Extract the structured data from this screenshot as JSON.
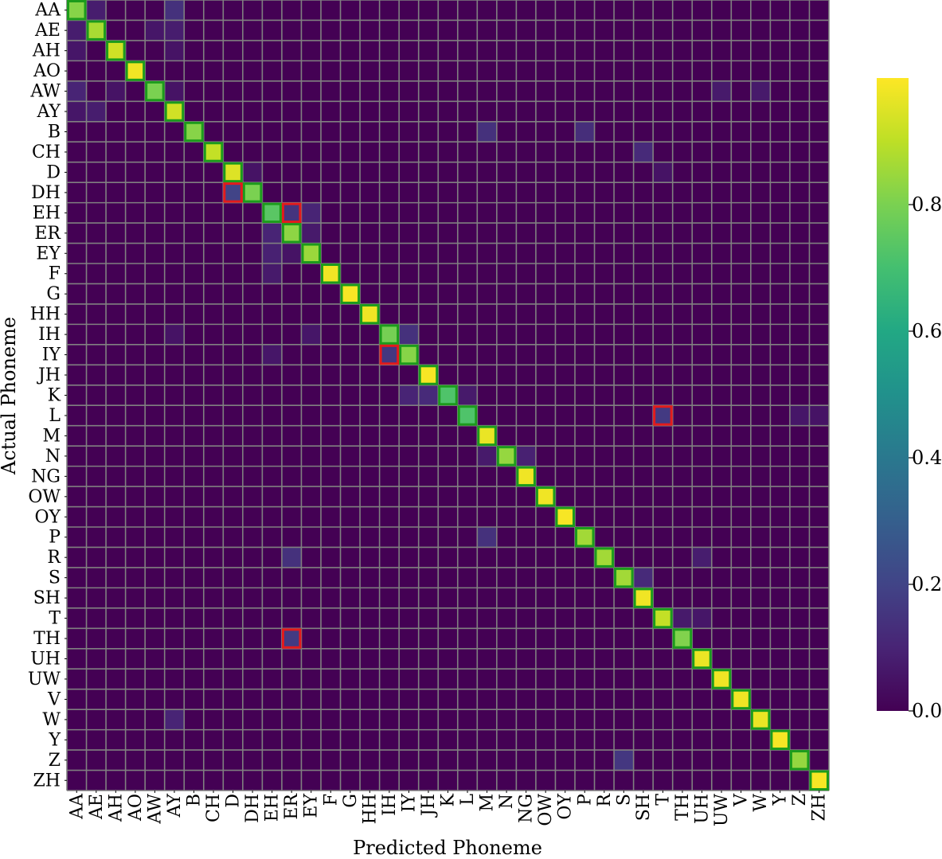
{
  "chart_data": {
    "type": "heatmap",
    "xlabel": "Predicted Phoneme",
    "ylabel": "Actual Phoneme",
    "categories": [
      "AA",
      "AE",
      "AH",
      "AO",
      "AW",
      "AY",
      "B",
      "CH",
      "D",
      "DH",
      "EH",
      "ER",
      "EY",
      "F",
      "G",
      "HH",
      "IH",
      "IY",
      "JH",
      "K",
      "L",
      "M",
      "N",
      "NG",
      "OW",
      "OY",
      "P",
      "R",
      "S",
      "SH",
      "T",
      "TH",
      "UH",
      "UW",
      "V",
      "W",
      "Y",
      "Z",
      "ZH"
    ],
    "diagonal": [
      0.82,
      0.87,
      0.93,
      0.98,
      0.8,
      0.93,
      0.82,
      0.91,
      0.95,
      0.8,
      0.74,
      0.83,
      0.85,
      0.98,
      0.99,
      0.98,
      0.79,
      0.82,
      0.99,
      0.72,
      0.72,
      0.97,
      0.84,
      0.98,
      0.98,
      0.99,
      0.86,
      0.86,
      0.86,
      0.98,
      0.91,
      0.81,
      0.97,
      0.98,
      0.98,
      0.97,
      0.99,
      0.84,
      0.99
    ],
    "off_diagonal": [
      {
        "actual": "AA",
        "predicted": "AE",
        "value": 0.08
      },
      {
        "actual": "AA",
        "predicted": "AY",
        "value": 0.14
      },
      {
        "actual": "AE",
        "predicted": "AA",
        "value": 0.08
      },
      {
        "actual": "AE",
        "predicted": "AW",
        "value": 0.06
      },
      {
        "actual": "AE",
        "predicted": "AY",
        "value": 0.08
      },
      {
        "actual": "AH",
        "predicted": "AA",
        "value": 0.06
      },
      {
        "actual": "AH",
        "predicted": "AY",
        "value": 0.05
      },
      {
        "actual": "AW",
        "predicted": "AA",
        "value": 0.1
      },
      {
        "actual": "AW",
        "predicted": "AH",
        "value": 0.05
      },
      {
        "actual": "AW",
        "predicted": "AY",
        "value": 0.05
      },
      {
        "actual": "AW",
        "predicted": "UW",
        "value": 0.07
      },
      {
        "actual": "AW",
        "predicted": "W",
        "value": 0.07
      },
      {
        "actual": "AY",
        "predicted": "AA",
        "value": 0.06
      },
      {
        "actual": "AY",
        "predicted": "AE",
        "value": 0.08
      },
      {
        "actual": "B",
        "predicted": "M",
        "value": 0.14
      },
      {
        "actual": "B",
        "predicted": "P",
        "value": 0.13
      },
      {
        "actual": "CH",
        "predicted": "SH",
        "value": 0.12
      },
      {
        "actual": "D",
        "predicted": "DH",
        "value": 0.05
      },
      {
        "actual": "D",
        "predicted": "T",
        "value": 0.05
      },
      {
        "actual": "DH",
        "predicted": "D",
        "value": 0.2
      },
      {
        "actual": "EH",
        "predicted": "ER",
        "value": 0.15
      },
      {
        "actual": "EH",
        "predicted": "EY",
        "value": 0.1
      },
      {
        "actual": "ER",
        "predicted": "EH",
        "value": 0.1
      },
      {
        "actual": "ER",
        "predicted": "EY",
        "value": 0.07
      },
      {
        "actual": "EY",
        "predicted": "EH",
        "value": 0.09
      },
      {
        "actual": "EY",
        "predicted": "ER",
        "value": 0.05
      },
      {
        "actual": "F",
        "predicted": "EH",
        "value": 0.07
      },
      {
        "actual": "IH",
        "predicted": "AY",
        "value": 0.05
      },
      {
        "actual": "IH",
        "predicted": "EY",
        "value": 0.06
      },
      {
        "actual": "IH",
        "predicted": "IY",
        "value": 0.14
      },
      {
        "actual": "IY",
        "predicted": "EH",
        "value": 0.06
      },
      {
        "actual": "IY",
        "predicted": "IH",
        "value": 0.16
      },
      {
        "actual": "K",
        "predicted": "IY",
        "value": 0.1
      },
      {
        "actual": "K",
        "predicted": "JH",
        "value": 0.12
      },
      {
        "actual": "K",
        "predicted": "L",
        "value": 0.07
      },
      {
        "actual": "L",
        "predicted": "T",
        "value": 0.17
      },
      {
        "actual": "L",
        "predicted": "Z",
        "value": 0.06
      },
      {
        "actual": "L",
        "predicted": "ZH",
        "value": 0.05
      },
      {
        "actual": "N",
        "predicted": "M",
        "value": 0.07
      },
      {
        "actual": "N",
        "predicted": "NG",
        "value": 0.09
      },
      {
        "actual": "P",
        "predicted": "M",
        "value": 0.14
      },
      {
        "actual": "R",
        "predicted": "ER",
        "value": 0.14
      },
      {
        "actual": "R",
        "predicted": "UH",
        "value": 0.08
      },
      {
        "actual": "S",
        "predicted": "SH",
        "value": 0.12
      },
      {
        "actual": "T",
        "predicted": "TH",
        "value": 0.07
      },
      {
        "actual": "T",
        "predicted": "UH",
        "value": 0.06
      },
      {
        "actual": "TH",
        "predicted": "ER",
        "value": 0.17
      },
      {
        "actual": "W",
        "predicted": "AY",
        "value": 0.1
      },
      {
        "actual": "Z",
        "predicted": "S",
        "value": 0.16
      }
    ],
    "red_boxes": [
      {
        "actual": "DH",
        "predicted": "D"
      },
      {
        "actual": "EH",
        "predicted": "ER"
      },
      {
        "actual": "IY",
        "predicted": "IH"
      },
      {
        "actual": "L",
        "predicted": "T"
      },
      {
        "actual": "TH",
        "predicted": "ER"
      }
    ],
    "green_boxes": "diagonal",
    "colormap": "viridis",
    "colorbar": {
      "ticks": [
        0.0,
        0.2,
        0.4,
        0.6,
        0.8
      ],
      "tick_labels": [
        "0.0",
        "0.2",
        "0.4",
        "0.6",
        "0.8"
      ],
      "max": 1.0
    },
    "grid": true
  }
}
